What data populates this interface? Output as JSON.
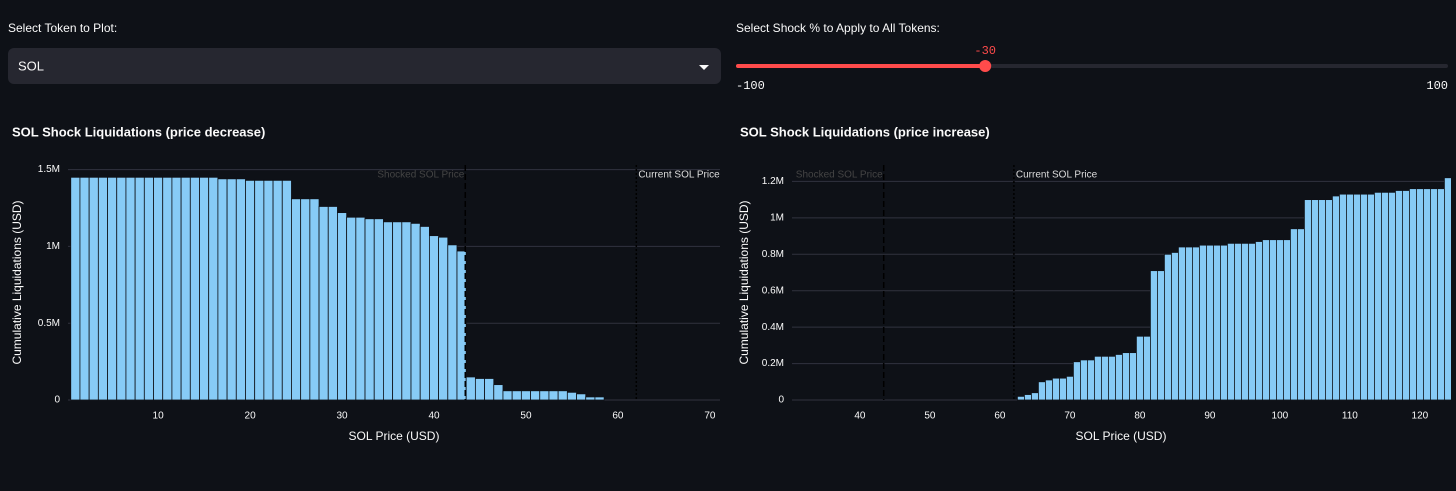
{
  "token_select": {
    "label": "Select Token to Plot:",
    "value": "SOL"
  },
  "shock_slider": {
    "label": "Select Shock % to Apply to All Tokens:",
    "value": -30,
    "min": -100,
    "max": 100
  },
  "chart_data": [
    {
      "type": "bar",
      "title": "SOL Shock Liquidations (price decrease)",
      "x_label": "SOL Price (USD)",
      "y_label": "Cumulative Liquidations (USD)",
      "color": "#87cbf6",
      "x": [
        1,
        2,
        3,
        4,
        5,
        6,
        7,
        8,
        9,
        10,
        11,
        12,
        13,
        14,
        15,
        16,
        17,
        18,
        19,
        20,
        21,
        22,
        23,
        24,
        25,
        26,
        27,
        28,
        29,
        30,
        31,
        32,
        33,
        34,
        35,
        36,
        37,
        38,
        39,
        40,
        41,
        42,
        43,
        44,
        45,
        46,
        47,
        48,
        49,
        50,
        51,
        52,
        53,
        54,
        55,
        56,
        57,
        58
      ],
      "values": [
        1450000,
        1450000,
        1450000,
        1450000,
        1450000,
        1450000,
        1450000,
        1450000,
        1450000,
        1450000,
        1450000,
        1450000,
        1450000,
        1450000,
        1450000,
        1450000,
        1440000,
        1440000,
        1440000,
        1430000,
        1430000,
        1430000,
        1430000,
        1430000,
        1310000,
        1310000,
        1310000,
        1260000,
        1260000,
        1220000,
        1190000,
        1190000,
        1180000,
        1180000,
        1160000,
        1160000,
        1160000,
        1150000,
        1130000,
        1070000,
        1060000,
        1010000,
        970000,
        150000,
        140000,
        140000,
        100000,
        60000,
        60000,
        60000,
        60000,
        60000,
        60000,
        60000,
        50000,
        40000,
        20000,
        20000
      ],
      "xlim": [
        0.2,
        71.1
      ],
      "xticks": [
        10,
        20,
        30,
        40,
        50,
        60,
        70
      ],
      "ylim": [
        0,
        1530000
      ],
      "yticks": [
        0,
        {
          "value": 500000,
          "label": "0.5M"
        },
        {
          "value": 1000000,
          "label": "1M"
        },
        {
          "value": 1500000,
          "label": "1.5M"
        }
      ],
      "grid": true,
      "annotations": [
        {
          "label": "Shocked SOL Price",
          "x": 43.4
        },
        {
          "label": "Current SOL Price",
          "x": 62
        }
      ]
    },
    {
      "type": "bar",
      "title": "SOL Shock Liquidations  (price increase)",
      "x_label": "SOL Price (USD)",
      "y_label": "Cumulative Liquidations (USD)",
      "color": "#87cbf6",
      "x": [
        63,
        64,
        65,
        66,
        67,
        68,
        69,
        70,
        71,
        72,
        73,
        74,
        75,
        76,
        77,
        78,
        79,
        80,
        81,
        82,
        83,
        84,
        85,
        86,
        87,
        88,
        89,
        90,
        91,
        92,
        93,
        94,
        95,
        96,
        97,
        98,
        99,
        100,
        101,
        102,
        103,
        104,
        105,
        106,
        107,
        108,
        109,
        110,
        111,
        112,
        113,
        114,
        115,
        116,
        117,
        118,
        119,
        120,
        121,
        122,
        123,
        124
      ],
      "values": [
        20000,
        30000,
        40000,
        100000,
        110000,
        120000,
        120000,
        130000,
        210000,
        220000,
        220000,
        240000,
        240000,
        240000,
        250000,
        260000,
        260000,
        350000,
        350000,
        710000,
        710000,
        800000,
        810000,
        840000,
        840000,
        840000,
        850000,
        850000,
        850000,
        850000,
        860000,
        860000,
        860000,
        860000,
        870000,
        880000,
        880000,
        880000,
        880000,
        940000,
        940000,
        1100000,
        1100000,
        1100000,
        1100000,
        1120000,
        1130000,
        1130000,
        1130000,
        1130000,
        1130000,
        1140000,
        1140000,
        1140000,
        1150000,
        1150000,
        1160000,
        1160000,
        1160000,
        1160000,
        1160000,
        1220000
      ],
      "xlim": [
        30.3,
        124.3
      ],
      "xticks": [
        40,
        50,
        60,
        70,
        80,
        90,
        100,
        110,
        120
      ],
      "ylim": [
        0,
        1290000
      ],
      "yticks": [
        0,
        {
          "value": 200000,
          "label": "0.2M"
        },
        {
          "value": 400000,
          "label": "0.4M"
        },
        {
          "value": 600000,
          "label": "0.6M"
        },
        {
          "value": 800000,
          "label": "0.8M"
        },
        {
          "value": 1000000,
          "label": "1M"
        },
        {
          "value": 1200000,
          "label": "1.2M"
        }
      ],
      "grid": true,
      "annotations": [
        {
          "label": "Shocked SOL Price",
          "x": 43.4
        },
        {
          "label": "Current SOL Price",
          "x": 62
        }
      ]
    }
  ]
}
